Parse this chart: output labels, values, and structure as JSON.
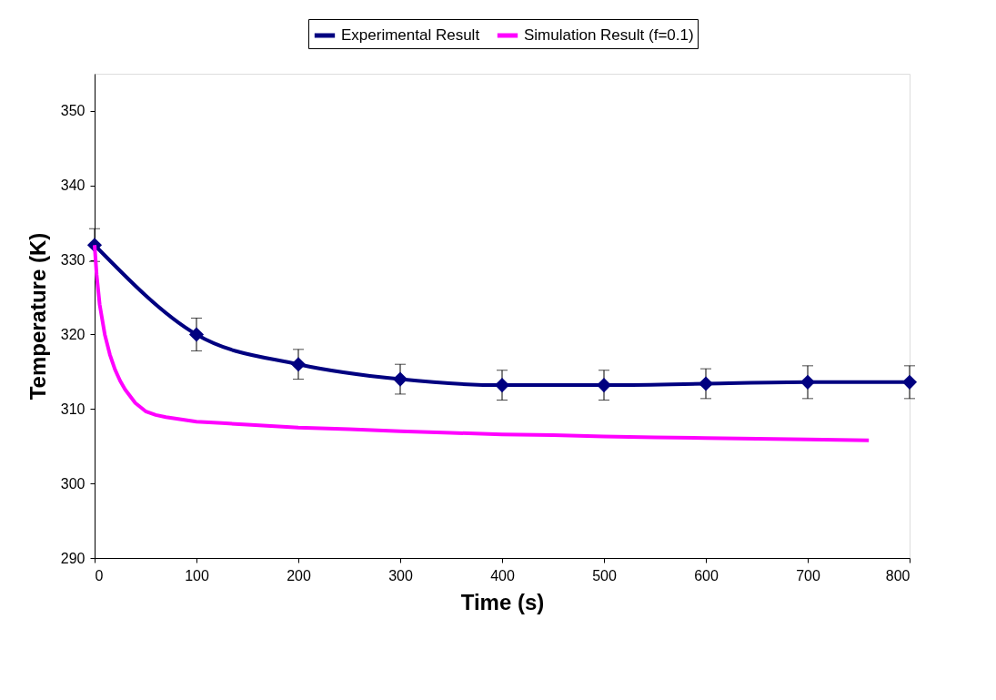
{
  "chart_data": {
    "type": "line",
    "xlabel": "Time (s)",
    "ylabel": "Temperature (K)",
    "xlim": [
      0,
      800
    ],
    "xticks": [
      0,
      100,
      200,
      300,
      400,
      500,
      600,
      700,
      800
    ],
    "ylim": [
      290,
      355
    ],
    "yticks": [
      290,
      300,
      310,
      320,
      330,
      340,
      350
    ],
    "grid": false,
    "legend": "top",
    "series": [
      {
        "name": "Experimental Result",
        "color": "#000080",
        "marker": "diamond",
        "x": [
          0,
          100,
          200,
          300,
          400,
          500,
          600,
          700,
          800
        ],
        "values": [
          332,
          320,
          316,
          314,
          313.2,
          313.2,
          313.4,
          313.6,
          313.6
        ],
        "errors": [
          2.2,
          2.2,
          2,
          2,
          2,
          2,
          2,
          2.2,
          2.2
        ]
      },
      {
        "name": "Simulation Result (f=0.1)",
        "color": "#ff00ff",
        "marker": "none",
        "x": [
          0,
          2,
          5,
          10,
          15,
          20,
          25,
          30,
          40,
          50,
          60,
          70,
          85,
          100,
          125,
          150,
          200,
          250,
          300,
          350,
          400,
          450,
          500,
          550,
          600,
          650,
          700,
          760
        ],
        "values": [
          332,
          328,
          324,
          320,
          317.3,
          315.3,
          313.8,
          312.6,
          310.8,
          309.7,
          309.2,
          308.9,
          308.6,
          308.3,
          308.1,
          307.9,
          307.5,
          307.3,
          307,
          306.8,
          306.6,
          306.5,
          306.3,
          306.2,
          306.1,
          306,
          305.9,
          305.8
        ]
      }
    ]
  }
}
